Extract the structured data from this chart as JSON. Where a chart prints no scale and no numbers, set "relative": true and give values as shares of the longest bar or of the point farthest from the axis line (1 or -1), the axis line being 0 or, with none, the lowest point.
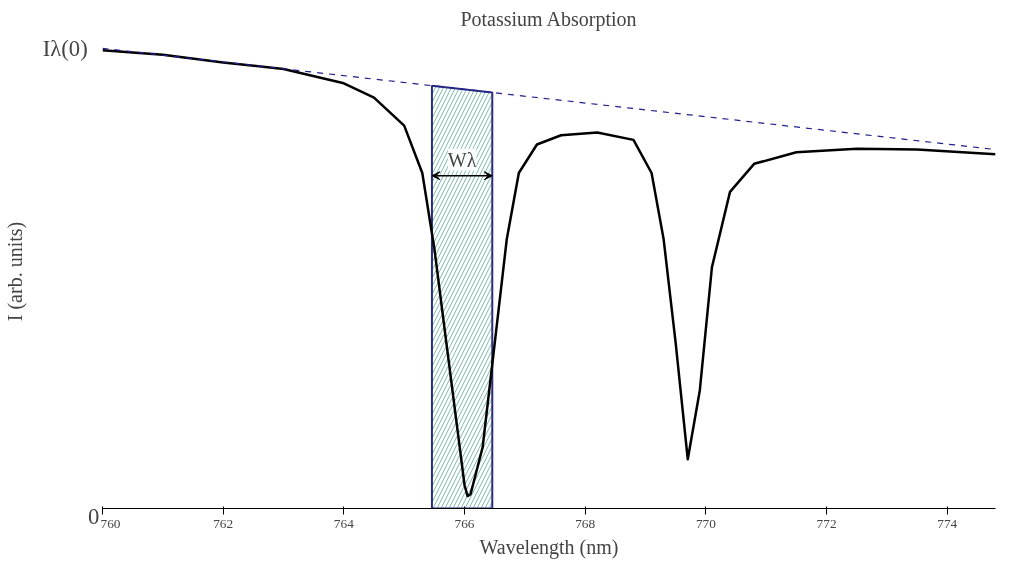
{
  "chart_data": {
    "type": "line",
    "title": "Potassium Absorption",
    "xlabel": "Wavelength (nm)",
    "ylabel": "I (arb. units)",
    "series": [
      {
        "color": "#000000",
        "x": [
          760,
          761,
          762,
          763,
          764,
          764.5,
          765,
          765.3,
          765.5,
          765.7,
          765.9,
          766.0,
          766.05,
          766.1,
          766.3,
          766.5,
          766.7,
          766.9,
          767.2,
          767.6,
          768.2,
          768.8,
          769.1,
          769.3,
          769.5,
          769.7,
          769.9,
          770.1,
          770.4,
          770.8,
          771.5,
          772.5,
          773.5,
          774.8
        ],
        "values": [
          0.996,
          0.986,
          0.969,
          0.955,
          0.924,
          0.893,
          0.832,
          0.729,
          0.565,
          0.359,
          0.154,
          0.051,
          0.027,
          0.031,
          0.133,
          0.359,
          0.585,
          0.729,
          0.791,
          0.811,
          0.817,
          0.801,
          0.729,
          0.585,
          0.359,
          0.107,
          0.257,
          0.524,
          0.688,
          0.749,
          0.774,
          0.782,
          0.78,
          0.77
        ]
      },
      {
        "color": "#1f1f8f",
        "line_style": "dashed",
        "x": [
          760,
          774.8
        ],
        "values": [
          1.0,
          0.78
        ]
      }
    ],
    "bands": [
      {
        "axis": "x",
        "from": 765.46,
        "to": 766.46,
        "color": "#2b2b80",
        "label": "Wλ"
      }
    ],
    "annotations": [
      {
        "text": "Iλ(0)",
        "x": 760,
        "y": 1.0
      },
      "0"
    ],
    "xlim": [
      760,
      774.8
    ],
    "xticks": [
      760,
      762,
      764,
      766,
      768,
      770,
      772,
      774
    ],
    "relative": true,
    "grid": false,
    "line_style": "solid"
  }
}
